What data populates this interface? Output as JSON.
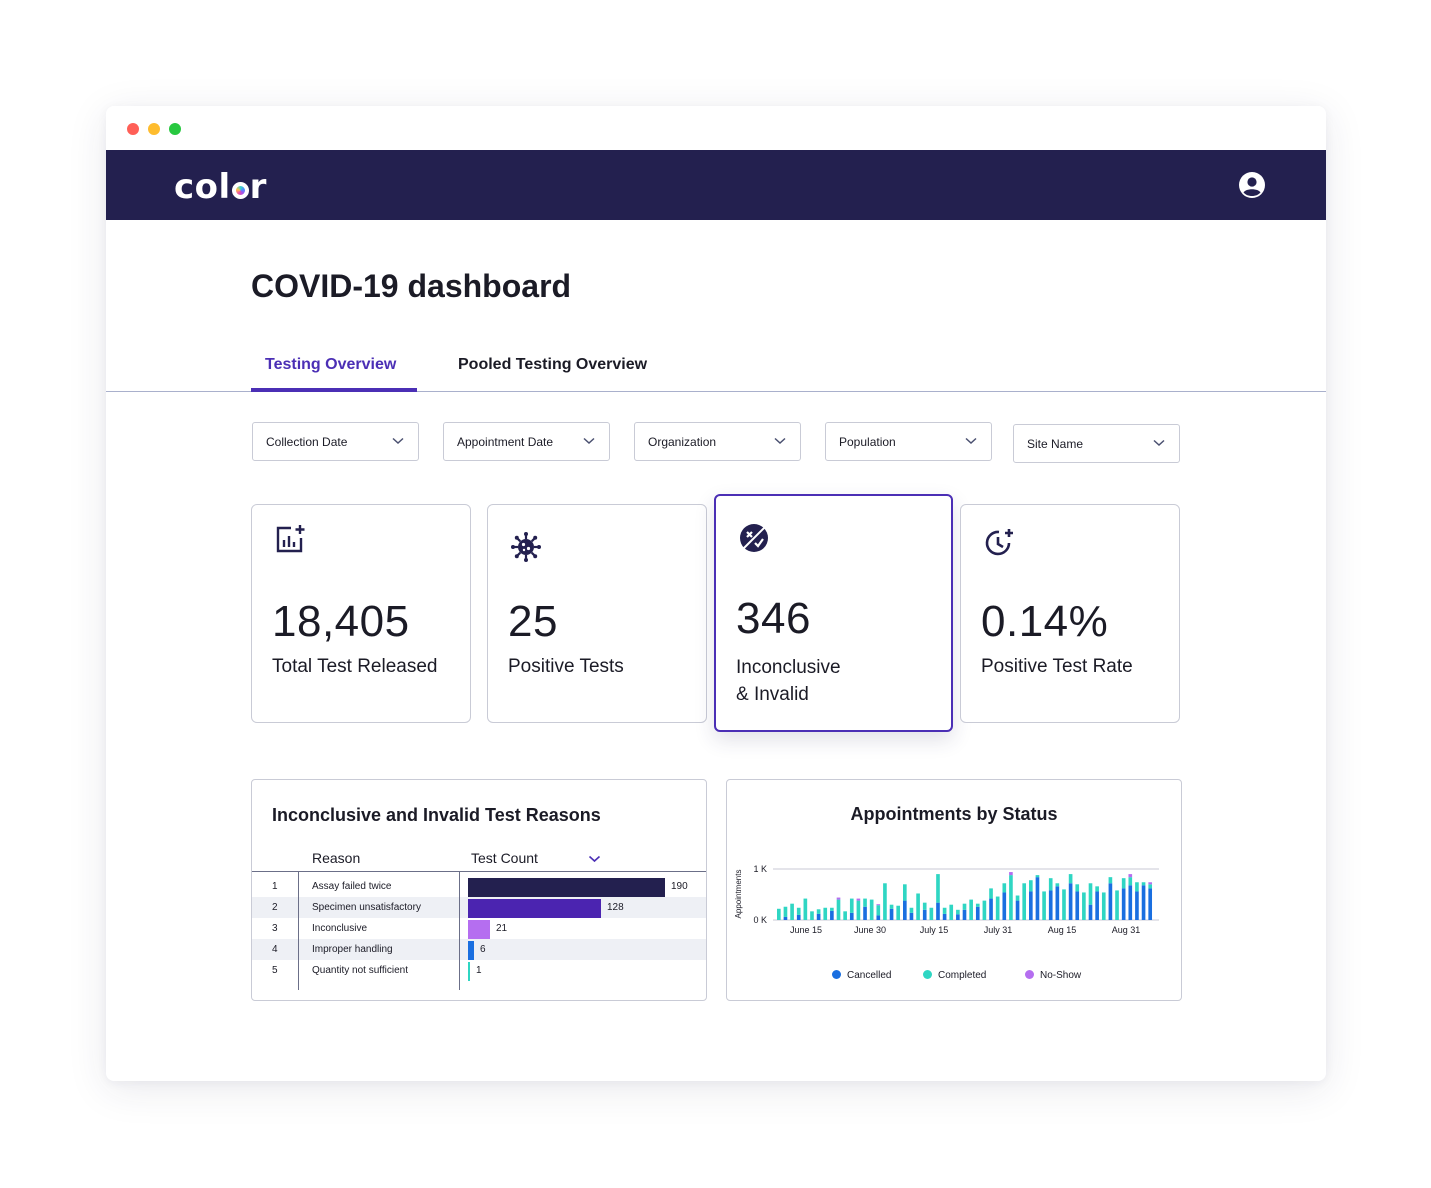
{
  "window": {
    "traffic_lights": [
      {
        "name": "close",
        "color": "#ff5f57"
      },
      {
        "name": "minimize",
        "color": "#febc2e"
      },
      {
        "name": "maximize",
        "color": "#28c840"
      }
    ]
  },
  "appbar": {
    "logo_prefix": "col",
    "logo_suffix": "r",
    "user_icon": "user-circle-icon",
    "background": "#23204f"
  },
  "page": {
    "title": "COVID-19 dashboard"
  },
  "tabs": [
    {
      "label": "Testing Overview",
      "active": true
    },
    {
      "label": "Pooled Testing Overview",
      "active": false
    }
  ],
  "filters": [
    {
      "label": "Collection Date"
    },
    {
      "label": "Appointment Date"
    },
    {
      "label": "Organization"
    },
    {
      "label": "Population"
    },
    {
      "label": "Site Name"
    }
  ],
  "metrics": [
    {
      "value": "18,405",
      "label": "Total Test Released",
      "icon": "chart-plus-icon"
    },
    {
      "value": "25",
      "label": "Positive Tests",
      "icon": "virus-icon"
    },
    {
      "value": "346",
      "label_line1": "Inconclusive",
      "label_line2": "& Invalid",
      "icon": "inconclusive-icon",
      "selected": true
    },
    {
      "value": "0.14%",
      "label": "Positive Test Rate",
      "icon": "clock-plus-icon"
    }
  ],
  "reasons_panel": {
    "title": "Inconclusive and Invalid Test Reasons",
    "col_reason": "Reason",
    "col_count": "Test Count",
    "rows": [
      {
        "idx": "1",
        "reason": "Assay failed twice",
        "count": 190,
        "count_label": "190",
        "color": "#23204f"
      },
      {
        "idx": "2",
        "reason": "Specimen unsatisfactory",
        "count": 128,
        "count_label": "128",
        "color": "#4b24b0"
      },
      {
        "idx": "3",
        "reason": "Inconclusive",
        "count": 21,
        "count_label": "21",
        "color": "#b56ef0"
      },
      {
        "idx": "4",
        "reason": "Improper handling",
        "count": 6,
        "count_label": "6",
        "color": "#1a6fe0"
      },
      {
        "idx": "5",
        "reason": "Quantity not sufficient",
        "count": 1,
        "count_label": "1",
        "color": "#2fd6c3"
      }
    ]
  },
  "appointments_panel": {
    "title": "Appointments by Status",
    "ylabel": "Appointments",
    "y_ticks": [
      "1 K",
      "0 K"
    ],
    "x_ticks": [
      "June 15",
      "June 30",
      "July 15",
      "July 31",
      "Aug 15",
      "Aug 31"
    ],
    "legend": [
      {
        "label": "Cancelled",
        "color": "#1a6fe0"
      },
      {
        "label": "Completed",
        "color": "#2fd6c3"
      },
      {
        "label": "No-Show",
        "color": "#b56ef0"
      }
    ]
  },
  "chart_data": {
    "type": "bar",
    "stacked": true,
    "title": "Appointments by Status",
    "ylabel": "Appointments",
    "ylim": [
      0,
      1000
    ],
    "x_tick_labels": [
      "June 15",
      "June 30",
      "July 15",
      "July 31",
      "Aug 15",
      "Aug 31"
    ],
    "series": [
      {
        "name": "Cancelled",
        "color": "#1a6fe0",
        "values": [
          0,
          60,
          0,
          100,
          0,
          0,
          120,
          0,
          180,
          0,
          0,
          140,
          0,
          260,
          0,
          90,
          0,
          220,
          0,
          380,
          140,
          0,
          200,
          0,
          340,
          120,
          0,
          110,
          200,
          0,
          260,
          0,
          420,
          0,
          540,
          0,
          380,
          0,
          560,
          840,
          0,
          580,
          660,
          0,
          720,
          560,
          0,
          300,
          560,
          0,
          720,
          0,
          620,
          680,
          560,
          680,
          620
        ]
      },
      {
        "name": "Completed",
        "color": "#2fd6c3",
        "values": [
          220,
          200,
          320,
          140,
          420,
          170,
          90,
          240,
          60,
          400,
          170,
          280,
          380,
          160,
          400,
          200,
          720,
          80,
          280,
          320,
          100,
          520,
          140,
          240,
          560,
          120,
          300,
          90,
          120,
          400,
          60,
          380,
          200,
          460,
          180,
          880,
          100,
          720,
          220,
          40,
          560,
          240,
          60,
          600,
          180,
          140,
          540,
          420,
          100,
          540,
          120,
          580,
          200,
          160,
          180,
          60,
          80
        ]
      },
      {
        "name": "No-Show",
        "color": "#b56ef0",
        "values": [
          0,
          0,
          0,
          0,
          0,
          0,
          0,
          0,
          0,
          40,
          0,
          0,
          40,
          0,
          0,
          20,
          0,
          0,
          0,
          0,
          0,
          0,
          0,
          0,
          0,
          0,
          0,
          0,
          0,
          0,
          0,
          0,
          0,
          0,
          0,
          60,
          0,
          0,
          0,
          0,
          0,
          0,
          0,
          0,
          0,
          0,
          0,
          0,
          0,
          0,
          0,
          0,
          0,
          60,
          0,
          0,
          40
        ]
      }
    ]
  }
}
